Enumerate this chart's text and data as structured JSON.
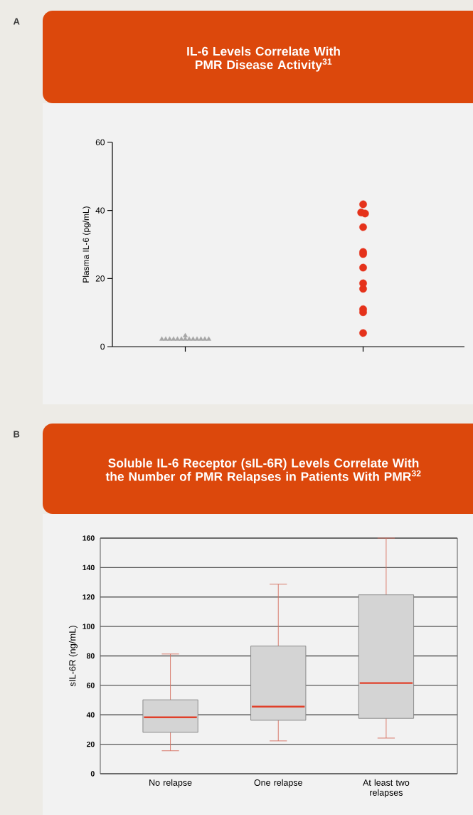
{
  "chart_data": [
    {
      "type": "scatter",
      "title": "IL-6 Levels Correlate With PMR Disease Activity$^{31}$",
      "ylabel": "Plasma IL-6 (pg/mL)",
      "annotations": [
        "A"
      ],
      "categories": [
        null,
        null
      ],
      "ylim": [
        0,
        60
      ],
      "yticks": [
        0,
        20,
        40,
        60
      ],
      "tick_labels": "y",
      "series": [
        {
          "color": "#a6a6a6",
          "marker": "triangle",
          "values": [
            2.2,
            null
          ]
        },
        {
          "color": "#a6a6a6",
          "marker": "triangle",
          "values": [
            2.2,
            null
          ]
        },
        {
          "color": "#a6a6a6",
          "marker": "triangle",
          "values": [
            2.2,
            null
          ]
        },
        {
          "color": "#a6a6a6",
          "marker": "triangle",
          "values": [
            2.2,
            null
          ]
        },
        {
          "color": "#a6a6a6",
          "marker": "triangle",
          "values": [
            2.2,
            null
          ]
        },
        {
          "color": "#a6a6a6",
          "marker": "triangle",
          "values": [
            2.2,
            null
          ]
        },
        {
          "color": "#a6a6a6",
          "marker": "triangle",
          "values": [
            2.2,
            null
          ]
        },
        {
          "color": "#a6a6a6",
          "marker": "triangle",
          "values": [
            3.2,
            null
          ]
        },
        {
          "color": "#a6a6a6",
          "marker": "triangle",
          "values": [
            2.2,
            null
          ]
        },
        {
          "color": "#a6a6a6",
          "marker": "triangle",
          "values": [
            2.2,
            null
          ]
        },
        {
          "color": "#a6a6a6",
          "marker": "triangle",
          "values": [
            2.2,
            null
          ]
        },
        {
          "color": "#a6a6a6",
          "marker": "triangle",
          "values": [
            2.2,
            null
          ]
        },
        {
          "color": "#a6a6a6",
          "marker": "triangle",
          "values": [
            2.2,
            null
          ]
        },
        {
          "color": "#a6a6a6",
          "marker": "triangle",
          "values": [
            2.2,
            null
          ]
        },
        {
          "color": "#e5321b",
          "marker": "circle",
          "values": [
            null,
            41.8
          ]
        },
        {
          "color": "#e5321b",
          "marker": "circle",
          "values": [
            null,
            39.4
          ]
        },
        {
          "color": "#e5321b",
          "marker": "circle",
          "values": [
            null,
            39.1
          ]
        },
        {
          "color": "#e5321b",
          "marker": "circle",
          "values": [
            null,
            35.1
          ]
        },
        {
          "color": "#e5321b",
          "marker": "circle",
          "values": [
            null,
            27.8
          ]
        },
        {
          "color": "#e5321b",
          "marker": "circle",
          "values": [
            null,
            27.2
          ]
        },
        {
          "color": "#e5321b",
          "marker": "circle",
          "values": [
            null,
            23.2
          ]
        },
        {
          "color": "#e5321b",
          "marker": "circle",
          "values": [
            null,
            18.6
          ]
        },
        {
          "color": "#e5321b",
          "marker": "circle",
          "values": [
            null,
            17.0
          ]
        },
        {
          "color": "#e5321b",
          "marker": "circle",
          "values": [
            null,
            11.0
          ]
        },
        {
          "color": "#e5321b",
          "marker": "circle",
          "values": [
            null,
            10.1
          ]
        },
        {
          "color": "#e5321b",
          "marker": "circle",
          "values": [
            null,
            4.0
          ]
        }
      ]
    },
    {
      "type": "box",
      "title": "Soluble IL-6 Receptor (sIL-6R) Levels Correlate With the Number of PMR Relapses in Patients With PMR$^{32}$",
      "ylabel": "sIL-6R (ng/mL)",
      "annotations": [
        "B"
      ],
      "categories": [
        "No relapse",
        "One relapse",
        "At least two relapses"
      ],
      "ylim": [
        0,
        160
      ],
      "yticks": [
        0,
        20,
        40,
        60,
        80,
        100,
        120,
        140,
        160
      ],
      "grid": "y",
      "series": [
        {
          "color": "#d4d4d4",
          "boxes": [
            {
              "low": 15.6,
              "q1": 28.1,
              "median": 38.3,
              "q3": 50.2,
              "high": 81.3
            },
            {
              "low": 22.3,
              "q1": 36.3,
              "median": 45.6,
              "q3": 86.7,
              "high": 128.7
            },
            {
              "low": 24.2,
              "q1": 37.6,
              "median": 61.6,
              "q3": 121.5,
              "high": 160
            }
          ]
        }
      ]
    }
  ]
}
